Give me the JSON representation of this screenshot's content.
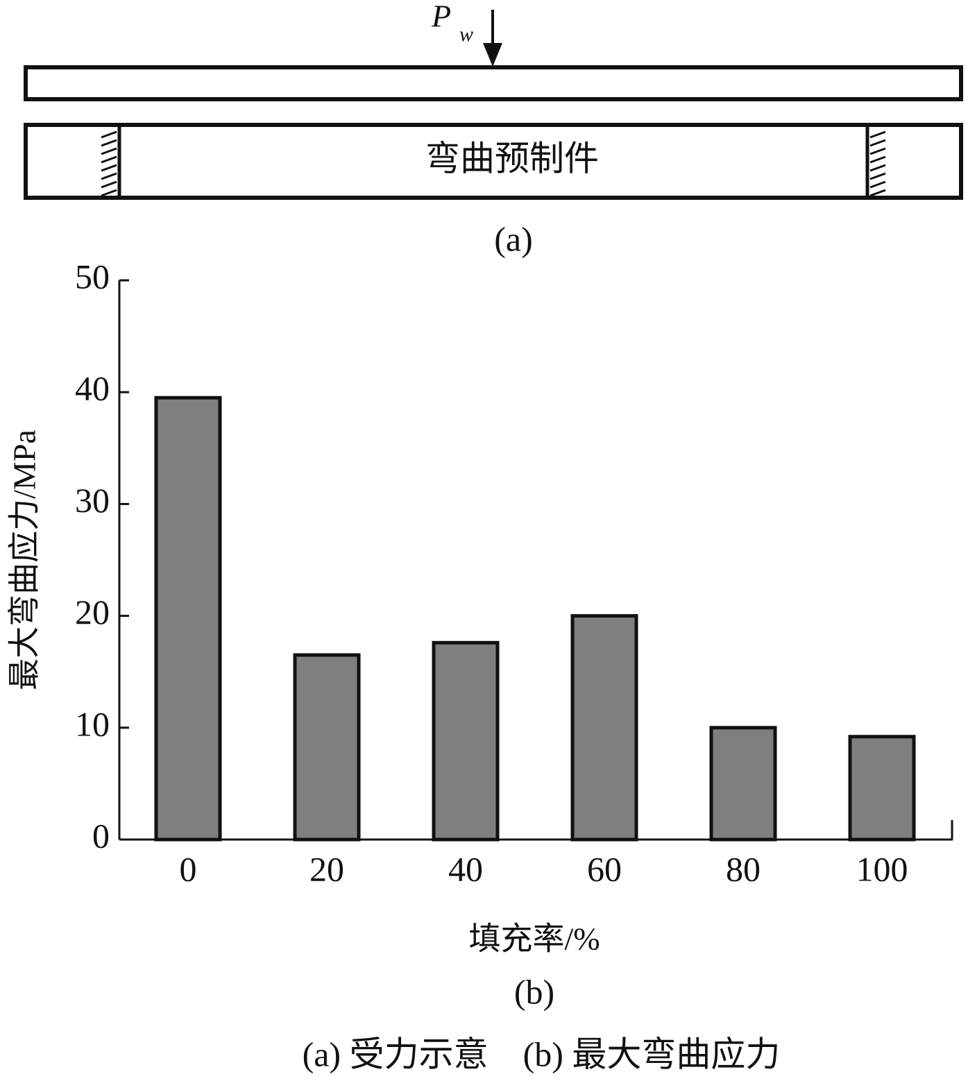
{
  "diagram": {
    "load_label": "P",
    "load_subscript": "w",
    "part_label": "弯曲预制件",
    "caption": "(a)"
  },
  "chart_data": {
    "type": "bar",
    "subtitle": "(b)",
    "x_label": "填充率/%",
    "y_label": "最大弯曲应力/MPa",
    "categories": [
      "0",
      "20",
      "40",
      "60",
      "80",
      "100"
    ],
    "values": [
      39.5,
      16.5,
      17.6,
      20,
      10,
      9.2
    ],
    "color": "#7f7f7f",
    "ylim": [
      0,
      50
    ],
    "yticks": [
      0,
      10,
      20,
      30,
      40,
      50
    ],
    "grid": false
  },
  "figure_caption": "(a) 受力示意　(b) 最大弯曲应力"
}
